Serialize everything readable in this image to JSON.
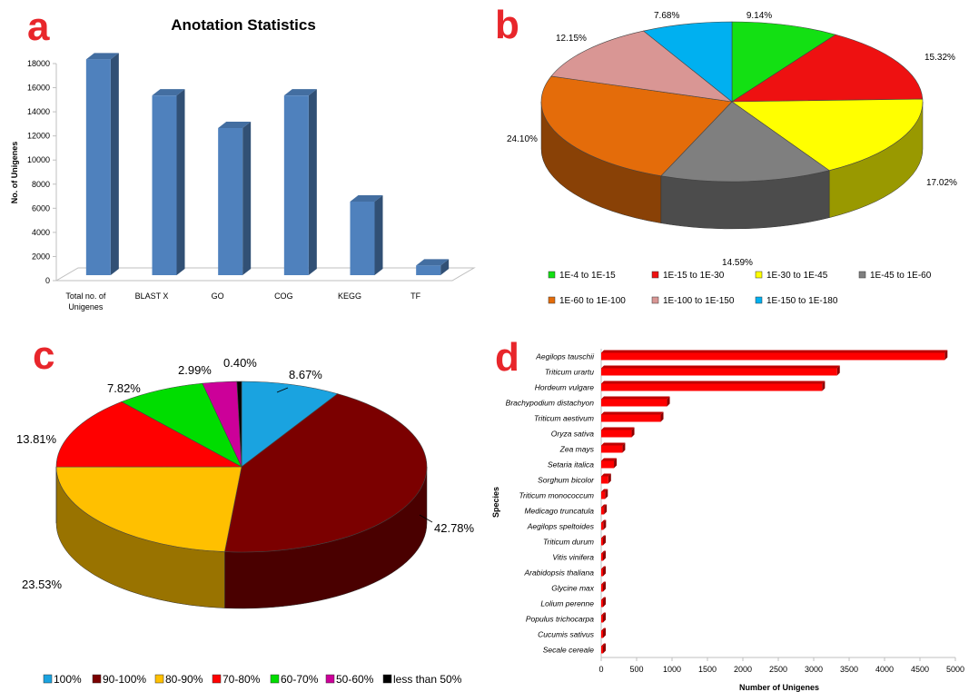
{
  "panel_letters": [
    "a",
    "b",
    "c",
    "d"
  ],
  "colors": {
    "letter": "#e8262b"
  },
  "chart_data": [
    {
      "panel": "a",
      "type": "bar",
      "title": "Anotation Statistics",
      "xlabel": "",
      "ylabel": "No. of Unigenes",
      "categories": [
        "Total no. of Unigenes",
        "BLAST X",
        "GO",
        "COG",
        "KEGG",
        "TF"
      ],
      "category_lines": [
        [
          "Total no. of",
          "Unigenes"
        ],
        [
          "BLAST X"
        ],
        [
          "GO"
        ],
        [
          "COG"
        ],
        [
          "KEGG"
        ],
        [
          "TF"
        ]
      ],
      "values": [
        17900,
        14900,
        12200,
        14900,
        6100,
        800
      ],
      "ylim": [
        0,
        18000
      ],
      "yticks": [
        0,
        2000,
        4000,
        6000,
        8000,
        10000,
        12000,
        14000,
        16000,
        18000
      ],
      "color": "#4f81bd",
      "grid": false,
      "legend": "none",
      "style": "3d"
    },
    {
      "panel": "b",
      "type": "pie",
      "style": "3d",
      "labels": [
        "1E-4 to 1E-15",
        "1E-15 to 1E-30",
        "1E-30 to 1E-45",
        "1E-45 to 1E-60",
        "1E-60 to 1E-100",
        "1E-100 to 1E-150",
        "1E-150 to 1E-180"
      ],
      "slices": [
        {
          "label": "1E-4 to 1E-15",
          "value_label": "9.14%",
          "color": "#13e013"
        },
        {
          "label": "1E-15 to 1E-30",
          "value_label": "15.32%",
          "color": "#ee1111"
        },
        {
          "label": "1E-30 to 1E-45",
          "value_label": "17.02%",
          "color": "#ffff00"
        },
        {
          "label": "1E-45 to 1E-60",
          "value_label": "14.59%",
          "color": "#7f7f7f"
        },
        {
          "label": "1E-60 to 1E-100",
          "value_label": "24.10%",
          "color": "#e46c0a"
        },
        {
          "label": "1E-100 to 1E-150",
          "value_label": "12.15%",
          "color": "#d99694"
        },
        {
          "label": "1E-150 to 1E-180",
          "value_label": "7.68%",
          "color": "#00b0f0"
        }
      ],
      "values": [
        9.14,
        15.32,
        17.02,
        14.59,
        24.1,
        12.15,
        7.68
      ],
      "legend": "bottom"
    },
    {
      "panel": "c",
      "type": "pie",
      "style": "3d",
      "labels": [
        "100%",
        "90-100%",
        "80-90%",
        "70-80%",
        "60-70%",
        "50-60%",
        "less than 50%"
      ],
      "slices": [
        {
          "label": "100%",
          "value_label": "8.67%",
          "color": "#1aa3e0"
        },
        {
          "label": "90-100%",
          "value_label": "42.78%",
          "color": "#7b0000"
        },
        {
          "label": "80-90%",
          "value_label": "23.53%",
          "color": "#ffc000"
        },
        {
          "label": "70-80%",
          "value_label": "13.81%",
          "color": "#ff0000"
        },
        {
          "label": "60-70%",
          "value_label": "7.82%",
          "color": "#00dd00"
        },
        {
          "label": "50-60%",
          "value_label": "2.99%",
          "color": "#cc0099"
        },
        {
          "label": "less than 50%",
          "value_label": "0.40%",
          "color": "#000000"
        }
      ],
      "values": [
        8.67,
        42.78,
        23.53,
        13.81,
        7.82,
        2.99,
        0.4
      ],
      "legend": "bottom"
    },
    {
      "panel": "d",
      "type": "bar",
      "orientation": "horizontal",
      "style": "3d",
      "xlabel": "Number of Unigenes",
      "ylabel": "Species",
      "categories": [
        "Aegilops tauschii",
        "Triticum urartu",
        "Hordeum vulgare",
        "Brachypodium distachyon",
        "Triticum aestivum",
        "Oryza sativa",
        "Zea mays",
        "Setaria italica",
        "Sorghum bicolor",
        "Triticum monococcum",
        "Medicago truncatula",
        "Aegilops speltoides",
        "Triticum durum",
        "Vitis vinifera",
        "Arabidopsis thaliana",
        "Glycine max",
        "Lolium perenne",
        "Populus trichocarpa",
        "Cucumis sativus",
        "Secale cereale"
      ],
      "values": [
        4850,
        3330,
        3120,
        930,
        840,
        430,
        300,
        180,
        100,
        55,
        40,
        30,
        25,
        20,
        15,
        12,
        10,
        8,
        6,
        5
      ],
      "xlim": [
        0,
        5000
      ],
      "xticks": [
        0,
        500,
        1000,
        1500,
        2000,
        2500,
        3000,
        3500,
        4000,
        4500,
        5000
      ],
      "color": "#ff0000",
      "grid": false,
      "legend": "none"
    }
  ]
}
